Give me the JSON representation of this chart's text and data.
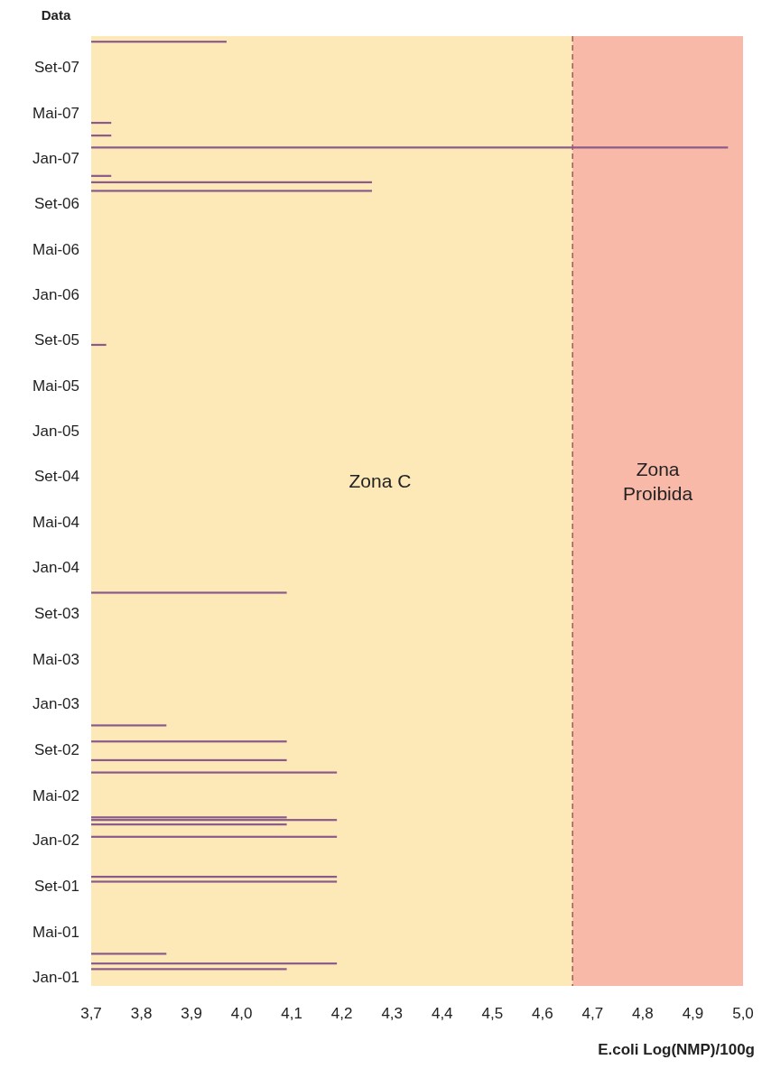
{
  "chart_data": {
    "type": "bar",
    "orientation": "horizontal",
    "ylabel": "Data",
    "xlabel": "E.coli Log(NMP)/100g",
    "x": [
      "2001-01-21",
      "2001-02-05",
      "2001-03-03",
      "2001-09-12",
      "2001-09-25",
      "2002-01-10",
      "2002-02-12",
      "2002-02-24",
      "2002-03-03",
      "2002-07-01",
      "2002-08-03",
      "2002-09-22",
      "2002-11-04",
      "2003-10-25",
      "2005-08-18",
      "2006-10-04",
      "2006-10-27",
      "2006-11-13",
      "2007-01-28",
      "2007-03-01",
      "2007-04-04",
      "2007-11-07"
    ],
    "values": [
      4.09,
      4.19,
      3.85,
      4.19,
      4.19,
      4.19,
      4.09,
      4.19,
      4.09,
      4.19,
      4.09,
      4.09,
      3.85,
      4.09,
      3.73,
      4.26,
      4.26,
      3.74,
      4.97,
      3.74,
      3.74,
      3.97
    ],
    "color": "#8a5a8a",
    "xlim": [
      3.7,
      5.0
    ],
    "xticks": [
      {
        "value": 3.7,
        "label": "3,7"
      },
      {
        "value": 3.8,
        "label": "3,8"
      },
      {
        "value": 3.9,
        "label": "3,9"
      },
      {
        "value": 4.0,
        "label": "4,0"
      },
      {
        "value": 4.1,
        "label": "4,1"
      },
      {
        "value": 4.2,
        "label": "4,2"
      },
      {
        "value": 4.3,
        "label": "4,3"
      },
      {
        "value": 4.4,
        "label": "4,4"
      },
      {
        "value": 4.5,
        "label": "4,5"
      },
      {
        "value": 4.6,
        "label": "4,6"
      },
      {
        "value": 4.7,
        "label": "4,7"
      },
      {
        "value": 4.8,
        "label": "4,8"
      },
      {
        "value": 4.9,
        "label": "4,9"
      },
      {
        "value": 5.0,
        "label": "5,0"
      }
    ],
    "ylim": [
      "2000-12-07",
      "2007-11-22"
    ],
    "yticks": [
      {
        "value": "2001-01",
        "label": "Jan-01"
      },
      {
        "value": "2001-05",
        "label": "Mai-01"
      },
      {
        "value": "2001-09",
        "label": "Set-01"
      },
      {
        "value": "2002-01",
        "label": "Jan-02"
      },
      {
        "value": "2002-05",
        "label": "Mai-02"
      },
      {
        "value": "2002-09",
        "label": "Set-02"
      },
      {
        "value": "2003-01",
        "label": "Jan-03"
      },
      {
        "value": "2003-05",
        "label": "Mai-03"
      },
      {
        "value": "2003-09",
        "label": "Set-03"
      },
      {
        "value": "2004-01",
        "label": "Jan-04"
      },
      {
        "value": "2004-05",
        "label": "Mai-04"
      },
      {
        "value": "2004-09",
        "label": "Set-04"
      },
      {
        "value": "2005-01",
        "label": "Jan-05"
      },
      {
        "value": "2005-05",
        "label": "Mai-05"
      },
      {
        "value": "2005-09",
        "label": "Set-05"
      },
      {
        "value": "2006-01",
        "label": "Jan-06"
      },
      {
        "value": "2006-05",
        "label": "Mai-06"
      },
      {
        "value": "2006-09",
        "label": "Set-06"
      },
      {
        "value": "2007-01",
        "label": "Jan-07"
      },
      {
        "value": "2007-05",
        "label": "Mai-07"
      },
      {
        "value": "2007-09",
        "label": "Set-07"
      }
    ],
    "bands": [
      {
        "axis": "x",
        "from": 3.7,
        "to": 4.66,
        "label": "Zona C",
        "color": "#fde9b8"
      },
      {
        "axis": "x",
        "from": 4.66,
        "to": 5.0,
        "label": "Zona Proibida",
        "color": "#f9b9a8"
      }
    ],
    "ref_lines": [
      {
        "axis": "x",
        "value": 4.66,
        "color": "#8a4a4a",
        "line_style": "dashed"
      }
    ]
  }
}
